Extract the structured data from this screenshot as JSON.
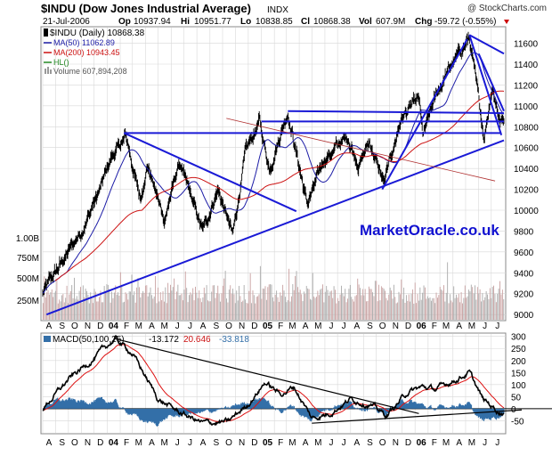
{
  "header": {
    "title": "$INDU (Dow Jones Industrial Average)",
    "exchange": "INDX",
    "copyright": "@ StockCharts.com",
    "date": "21-Jul-2006",
    "op_label": "Op",
    "op": "10937.94",
    "hi_label": "Hi",
    "hi": "10951.77",
    "lo_label": "Lo",
    "lo": "10838.85",
    "cl_label": "Cl",
    "cl": "10868.38",
    "vol_label": "Vol",
    "vol": "607.9M",
    "chg_label": "Chg",
    "chg": "-59.72 (-0.55%)"
  },
  "legend": {
    "indu": "$INDU (Daily) 10868.38",
    "ma50": "MA(50) 11062.89",
    "ma200": "MA(200) 10943.45",
    "hl": "HL()",
    "volume": "Volume 607,894,208"
  },
  "watermark": "MarketOracle.co.uk",
  "macd_legend": {
    "label": "MACD(50,100,25)",
    "v1": "-13.172",
    "v2": "20.646",
    "v3": "-33.818"
  },
  "colors": {
    "price": "#000000",
    "ma50": "#1c1ca6",
    "ma200": "#cc1111",
    "trend": "#1a1ad6",
    "volume": "#c8a0a0",
    "volume_up": "#aaaaaa",
    "macd_hist": "#336fa8",
    "macd_signal": "#dd1111",
    "grid": "#d8d8d8"
  },
  "chart_data": [
    {
      "type": "line",
      "title": "$INDU (Dow Jones Industrial Average)",
      "y_axis_ticks": [
        9000,
        9200,
        9400,
        9600,
        9800,
        10000,
        10200,
        10400,
        10600,
        10800,
        11000,
        11200,
        11400,
        11600
      ],
      "ylim": [
        8950,
        11750
      ],
      "volume_ticks": [
        "250M",
        "500M",
        "750M",
        "1.00B"
      ],
      "x_tick_labels": [
        "A",
        "S",
        "O",
        "N",
        "D",
        "04",
        "F",
        "M",
        "A",
        "M",
        "J",
        "J",
        "A",
        "S",
        "O",
        "N",
        "D",
        "05",
        "F",
        "M",
        "A",
        "M",
        "J",
        "J",
        "A",
        "S",
        "O",
        "N",
        "D",
        "06",
        "F",
        "M",
        "A",
        "M",
        "J",
        "J"
      ],
      "x_start": "2003-08",
      "price_keypoints": [
        [
          "2003-08-01",
          9200
        ],
        [
          "2003-09-15",
          9500
        ],
        [
          "2003-11-01",
          9800
        ],
        [
          "2003-12-15",
          10200
        ],
        [
          "2004-01-10",
          10500
        ],
        [
          "2004-02-15",
          10700
        ],
        [
          "2004-03-20",
          10100
        ],
        [
          "2004-04-05",
          10450
        ],
        [
          "2004-05-15",
          9900
        ],
        [
          "2004-06-20",
          10450
        ],
        [
          "2004-08-15",
          9800
        ],
        [
          "2004-09-20",
          10200
        ],
        [
          "2004-10-25",
          9750
        ],
        [
          "2004-11-25",
          10550
        ],
        [
          "2004-12-28",
          10850
        ],
        [
          "2005-01-20",
          10400
        ],
        [
          "2005-03-05",
          10950
        ],
        [
          "2005-04-20",
          10050
        ],
        [
          "2005-06-01",
          10500
        ],
        [
          "2005-07-25",
          10700
        ],
        [
          "2005-08-20",
          10450
        ],
        [
          "2005-09-15",
          10650
        ],
        [
          "2005-10-20",
          10250
        ],
        [
          "2005-11-30",
          10900
        ],
        [
          "2006-01-10",
          11050
        ],
        [
          "2006-01-20",
          10700
        ],
        [
          "2006-02-20",
          11100
        ],
        [
          "2006-03-15",
          11300
        ],
        [
          "2006-05-10",
          11650
        ],
        [
          "2006-06-14",
          10700
        ],
        [
          "2006-07-03",
          11200
        ],
        [
          "2006-07-21",
          10868
        ]
      ],
      "series": [
        {
          "name": "MA(50)",
          "value": 11062.89
        },
        {
          "name": "MA(200)",
          "value": 10943.45
        },
        {
          "name": "Volume",
          "value": 607894208
        }
      ]
    },
    {
      "type": "line",
      "title": "MACD(50,100,25)",
      "y_axis_ticks": [
        -50,
        0,
        50,
        100,
        150,
        200,
        250,
        300
      ],
      "ylim": [
        -100,
        310
      ],
      "macd_keypoints": [
        [
          "2003-08-01",
          0
        ],
        [
          "2003-10-01",
          120
        ],
        [
          "2003-12-01",
          210
        ],
        [
          "2004-01-20",
          290
        ],
        [
          "2004-03-01",
          230
        ],
        [
          "2004-05-01",
          40
        ],
        [
          "2004-06-15",
          -10
        ],
        [
          "2004-08-15",
          -60
        ],
        [
          "2004-10-15",
          -55
        ],
        [
          "2004-12-01",
          20
        ],
        [
          "2005-01-10",
          110
        ],
        [
          "2005-02-15",
          60
        ],
        [
          "2005-03-20",
          90
        ],
        [
          "2005-05-01",
          -40
        ],
        [
          "2005-06-10",
          -20
        ],
        [
          "2005-08-01",
          40
        ],
        [
          "2005-09-15",
          20
        ],
        [
          "2005-10-25",
          -30
        ],
        [
          "2005-12-15",
          70
        ],
        [
          "2006-01-20",
          90
        ],
        [
          "2006-02-20",
          80
        ],
        [
          "2006-03-25",
          110
        ],
        [
          "2006-05-10",
          150
        ],
        [
          "2006-06-10",
          40
        ],
        [
          "2006-07-21",
          -13
        ]
      ],
      "series": [
        {
          "name": "MACD",
          "value": -13.172
        },
        {
          "name": "Signal",
          "value": 20.646
        },
        {
          "name": "Histogram",
          "value": -33.818
        }
      ]
    }
  ]
}
